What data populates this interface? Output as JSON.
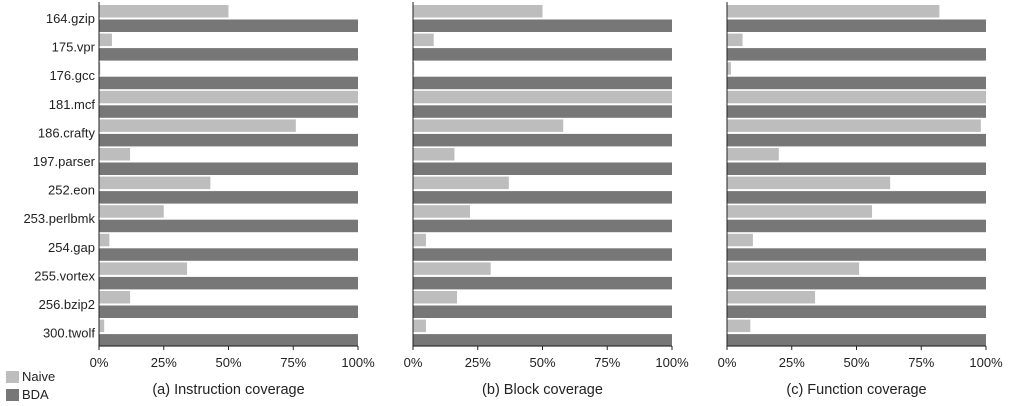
{
  "chart_data": [
    {
      "type": "bar",
      "orientation": "horizontal",
      "title": "(a) Instruction coverage",
      "categories": [
        "164.gzip",
        "175.vpr",
        "176.gcc",
        "181.mcf",
        "186.crafty",
        "197.parser",
        "252.eon",
        "253.perlbmk",
        "254.gap",
        "255.vortex",
        "256.bzip2",
        "300.twolf"
      ],
      "series": [
        {
          "name": "Naive",
          "color": "#bdbdbd",
          "values": [
            50,
            5,
            0.5,
            100,
            76,
            12,
            43,
            25,
            4,
            34,
            12,
            2
          ]
        },
        {
          "name": "BDA",
          "color": "#777777",
          "values": [
            100,
            100,
            100,
            100,
            100,
            100,
            100,
            100,
            100,
            100,
            100,
            100
          ]
        }
      ],
      "xlim": [
        0,
        100
      ],
      "xticks": [
        "0%",
        "25%",
        "50%",
        "75%",
        "100%"
      ],
      "grid": false
    },
    {
      "type": "bar",
      "orientation": "horizontal",
      "title": "(b) Block coverage",
      "categories": [
        "164.gzip",
        "175.vpr",
        "176.gcc",
        "181.mcf",
        "186.crafty",
        "197.parser",
        "252.eon",
        "253.perlbmk",
        "254.gap",
        "255.vortex",
        "256.bzip2",
        "300.twolf"
      ],
      "series": [
        {
          "name": "Naive",
          "color": "#bdbdbd",
          "values": [
            50,
            8,
            0.5,
            100,
            58,
            16,
            37,
            22,
            5,
            30,
            17,
            5
          ]
        },
        {
          "name": "BDA",
          "color": "#777777",
          "values": [
            100,
            100,
            100,
            100,
            100,
            100,
            100,
            100,
            100,
            100,
            100,
            100
          ]
        }
      ],
      "xlim": [
        0,
        100
      ],
      "xticks": [
        "0%",
        "25%",
        "50%",
        "75%",
        "100%"
      ],
      "grid": false
    },
    {
      "type": "bar",
      "orientation": "horizontal",
      "title": "(c) Function coverage",
      "categories": [
        "164.gzip",
        "175.vpr",
        "176.gcc",
        "181.mcf",
        "186.crafty",
        "197.parser",
        "252.eon",
        "253.perlbmk",
        "254.gap",
        "255.vortex",
        "256.bzip2",
        "300.twolf"
      ],
      "series": [
        {
          "name": "Naive",
          "color": "#bdbdbd",
          "values": [
            82,
            6,
            1.5,
            100,
            98,
            20,
            63,
            56,
            10,
            51,
            34,
            9
          ]
        },
        {
          "name": "BDA",
          "color": "#777777",
          "values": [
            100,
            100,
            100,
            100,
            100,
            100,
            100,
            100,
            100,
            100,
            100,
            100
          ]
        }
      ],
      "xlim": [
        0,
        100
      ],
      "xticks": [
        "0%",
        "25%",
        "50%",
        "75%",
        "100%"
      ],
      "grid": false
    }
  ],
  "legend": {
    "placement": "bottom-left",
    "items": [
      {
        "label": "Naive",
        "color": "#bdbdbd"
      },
      {
        "label": "BDA",
        "color": "#777777"
      }
    ]
  }
}
